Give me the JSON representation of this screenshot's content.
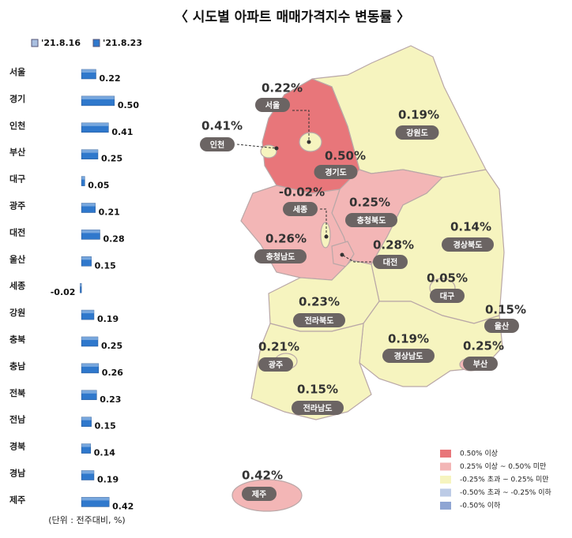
{
  "title": "〈 시도별 아파트 매매가격지수 변동률 〉",
  "chart_data": {
    "type": "bar",
    "orientation": "horizontal",
    "legend": [
      {
        "name": "'21.8.16",
        "color": "#a9bfe0"
      },
      {
        "name": "'21.8.23",
        "color": "#2f78cc"
      }
    ],
    "categories": [
      "서울",
      "경기",
      "인천",
      "부산",
      "대구",
      "광주",
      "대전",
      "울산",
      "세종",
      "강원",
      "충북",
      "충남",
      "전북",
      "전남",
      "경북",
      "경남",
      "제주"
    ],
    "values": [
      0.22,
      0.5,
      0.41,
      0.25,
      0.05,
      0.21,
      0.28,
      0.15,
      -0.02,
      0.19,
      0.25,
      0.26,
      0.23,
      0.15,
      0.14,
      0.19,
      0.42
    ],
    "value_labels": [
      "0.22",
      "0.50",
      "0.41",
      "0.25",
      "0.05",
      "0.21",
      "0.28",
      "0.15",
      "-0.02",
      "0.19",
      "0.25",
      "0.26",
      "0.23",
      "0.15",
      "0.14",
      "0.19",
      "0.42"
    ],
    "color": "#2f78cc",
    "xlim": [
      -1.2,
      0.55
    ],
    "unit_note": "(단위 : 전주대비, %)"
  },
  "map": {
    "regions": [
      {
        "label": "서울",
        "value": "0.22%"
      },
      {
        "label": "인천",
        "value": "0.41%"
      },
      {
        "label": "경기도",
        "value": "0.50%"
      },
      {
        "label": "강원도",
        "value": "0.19%"
      },
      {
        "label": "세종",
        "value": "-0.02%"
      },
      {
        "label": "충청북도",
        "value": "0.25%"
      },
      {
        "label": "충청남도",
        "value": "0.26%"
      },
      {
        "label": "대전",
        "value": "0.28%"
      },
      {
        "label": "경상북도",
        "value": "0.14%"
      },
      {
        "label": "대구",
        "value": "0.05%"
      },
      {
        "label": "울산",
        "value": "0.15%"
      },
      {
        "label": "전라북도",
        "value": "0.23%"
      },
      {
        "label": "경상남도",
        "value": "0.19%"
      },
      {
        "label": "광주",
        "value": "0.21%"
      },
      {
        "label": "부산",
        "value": "0.25%"
      },
      {
        "label": "전라남도",
        "value": "0.15%"
      },
      {
        "label": "제주",
        "value": "0.42%"
      }
    ],
    "legend": [
      {
        "label": "0.50% 이상",
        "color": "#e8767a"
      },
      {
        "label": "0.25% 이상 ~ 0.50% 미만",
        "color": "#f3b6b6"
      },
      {
        "label": "-0.25% 초과 ~ 0.25% 미만",
        "color": "#f6f4bf"
      },
      {
        "label": "-0.50% 초과 ~ -0.25% 이하",
        "color": "#bccbe6"
      },
      {
        "label": "-0.50% 이하",
        "color": "#8fa5d3"
      }
    ]
  }
}
